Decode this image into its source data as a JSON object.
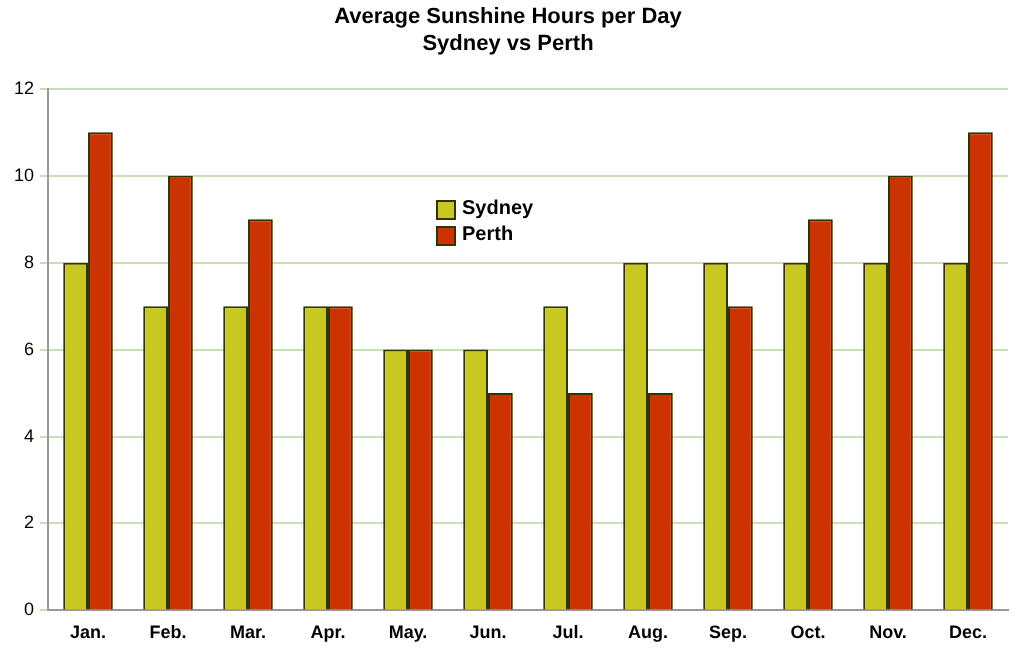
{
  "chart_data": {
    "type": "bar",
    "title": "Average Sunshine Hours per Day",
    "subtitle": "Sydney vs Perth",
    "categories": [
      "Jan.",
      "Feb.",
      "Mar.",
      "Apr.",
      "May.",
      "Jun.",
      "Jul.",
      "Aug.",
      "Sep.",
      "Oct.",
      "Nov.",
      "Dec."
    ],
    "series": [
      {
        "name": "Sydney",
        "color": "#c8c81e",
        "values": [
          8,
          7,
          7,
          7,
          6,
          6,
          7,
          8,
          8,
          8,
          8,
          8
        ]
      },
      {
        "name": "Perth",
        "color": "#cc3300",
        "values": [
          11,
          10,
          9,
          7,
          6,
          5,
          5,
          5,
          7,
          9,
          10,
          11
        ]
      }
    ],
    "ylim": [
      0,
      12
    ],
    "yticks": [
      0,
      2,
      4,
      6,
      8,
      10,
      12
    ],
    "grid": "y",
    "legend": "top"
  }
}
